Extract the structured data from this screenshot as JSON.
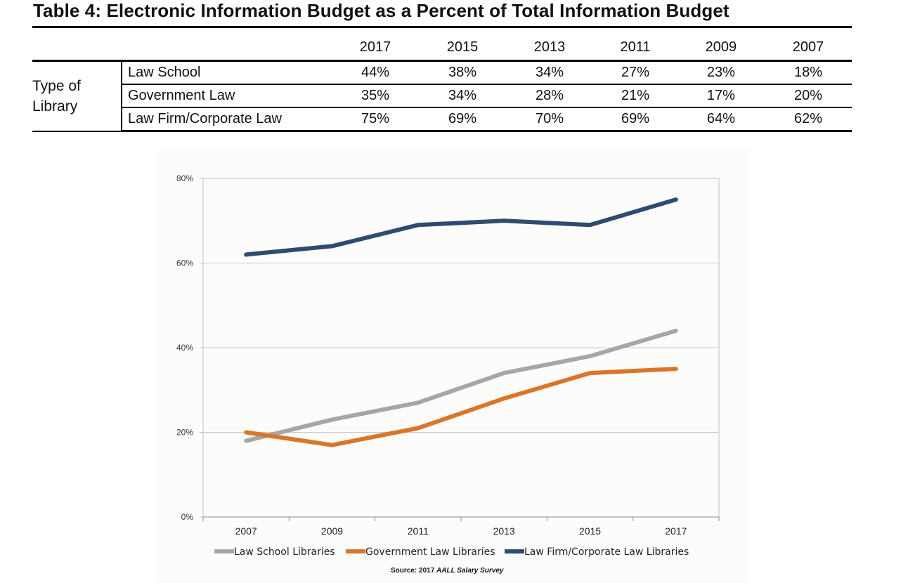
{
  "title": "Table 4: Electronic Information Budget as a Percent of Total Information Budget",
  "table": {
    "group_label_line1": "Type of",
    "group_label_line2": "Library",
    "years": [
      "2017",
      "2015",
      "2013",
      "2011",
      "2009",
      "2007"
    ],
    "rows": [
      {
        "type": "Law School",
        "values": [
          "44%",
          "38%",
          "34%",
          "27%",
          "23%",
          "18%"
        ]
      },
      {
        "type": "Government Law",
        "values": [
          "35%",
          "34%",
          "28%",
          "21%",
          "17%",
          "20%"
        ]
      },
      {
        "type": "Law Firm/Corporate Law",
        "values": [
          "75%",
          "69%",
          "70%",
          "69%",
          "64%",
          "62%"
        ]
      }
    ]
  },
  "chart_data": {
    "type": "line",
    "x": [
      "2007",
      "2009",
      "2011",
      "2013",
      "2015",
      "2017"
    ],
    "y_ticks": [
      "0%",
      "20%",
      "40%",
      "60%",
      "80%"
    ],
    "ylim": [
      0,
      80
    ],
    "grid": true,
    "legend_position": "bottom",
    "series": [
      {
        "name": "Law School Libraries",
        "color": "#a6a6a6",
        "values": [
          18,
          23,
          27,
          34,
          38,
          44
        ]
      },
      {
        "name": "Government Law Libraries",
        "color": "#d9762b",
        "values": [
          20,
          17,
          21,
          28,
          34,
          35
        ]
      },
      {
        "name": "Law Firm/Corporate Law Libraries",
        "color": "#2f4b71",
        "values": [
          62,
          64,
          69,
          70,
          69,
          75
        ]
      }
    ]
  },
  "source": {
    "prefix": "Source: 2017 ",
    "publication": "AALL Salary Survey"
  }
}
